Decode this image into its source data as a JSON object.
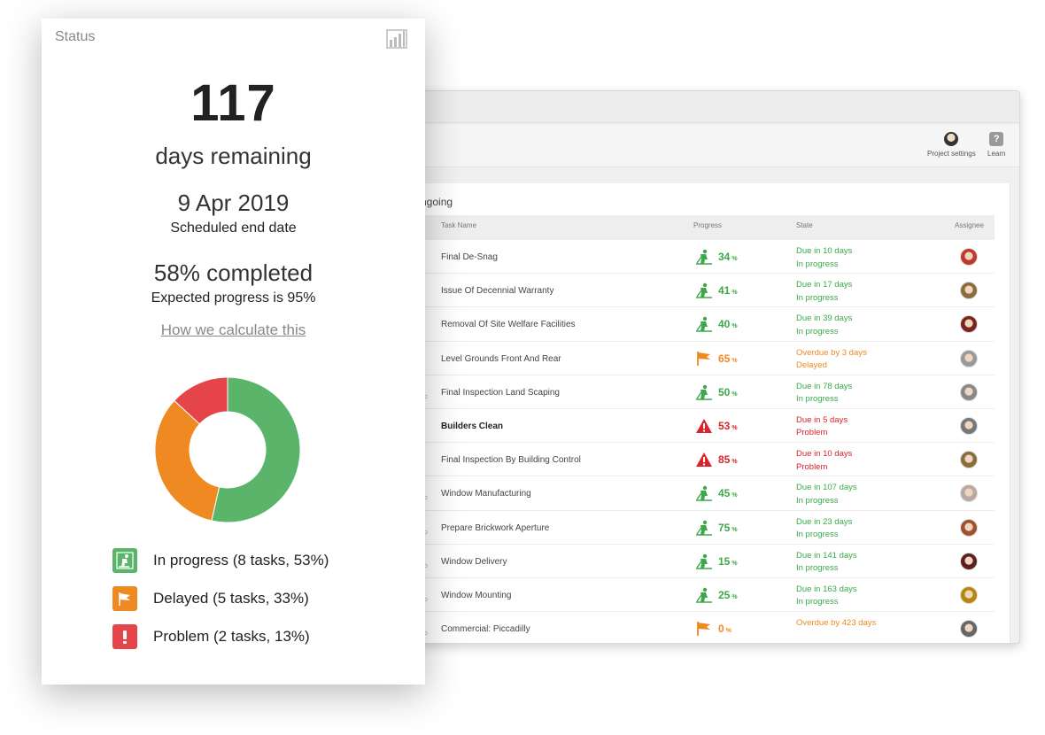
{
  "status_card": {
    "title": "Status",
    "chart_icon": "bar-chart-icon",
    "days_remaining_value": "117",
    "days_remaining_label": "days remaining",
    "end_date": "9 Apr 2019",
    "end_date_label": "Scheduled end date",
    "completed": "58% completed",
    "expected": "Expected progress is 95%",
    "how_link": "How we calculate this",
    "legend": [
      {
        "label": "In progress (8 tasks, 53%)",
        "icon": "worker-digging-icon",
        "color": "#5ab46a"
      },
      {
        "label": "Delayed (5 tasks, 33%)",
        "icon": "flag-icon",
        "color": "#ef8a22"
      },
      {
        "label": "Problem (2 tasks, 13%)",
        "icon": "exclamation-icon",
        "color": "#e5444a"
      }
    ]
  },
  "chart_data": {
    "type": "pie",
    "categories": [
      "In progress",
      "Delayed",
      "Problem"
    ],
    "values": [
      53,
      33,
      13
    ],
    "colors": [
      "#5ab46a",
      "#ef8a22",
      "#e5444a"
    ],
    "donut": true
  },
  "toolbar": {
    "project_settings": "Project settings",
    "learn": "Learn"
  },
  "tasks_panel": {
    "title_fragment": "ngoing",
    "columns": {
      "task": "Task Name",
      "progress": "Progress",
      "state": "State",
      "assignee": "Assignee"
    },
    "rows": [
      {
        "ago": "",
        "name": "Final De-Snag",
        "bold": false,
        "icon": "worker",
        "pct": "34",
        "tone": "green",
        "due": "Due in 10 days",
        "status": "In progress",
        "avatar": "#c0392b"
      },
      {
        "ago": "",
        "name": "Issue Of Decennial Warranty",
        "bold": false,
        "icon": "worker",
        "pct": "41",
        "tone": "green",
        "due": "Due in 17 days",
        "status": "In progress",
        "avatar": "#8a6d3b"
      },
      {
        "ago": "",
        "name": "Removal Of Site Welfare Facilities",
        "bold": false,
        "icon": "worker",
        "pct": "40",
        "tone": "green",
        "due": "Due in 39 days",
        "status": "In progress",
        "avatar": "#7b241c"
      },
      {
        "ago": "",
        "name": "Level Grounds Front And Rear",
        "bold": false,
        "icon": "flag",
        "pct": "65",
        "tone": "orange",
        "due": "Overdue by 3 days",
        "status": "Delayed",
        "avatar": "#999999"
      },
      {
        "ago": "go",
        "name": "Final Inspection Land Scaping",
        "bold": false,
        "icon": "worker",
        "pct": "50",
        "tone": "green",
        "due": "Due in 78 days",
        "status": "In progress",
        "avatar": "#888888"
      },
      {
        "ago": "",
        "name": "Builders Clean",
        "bold": true,
        "icon": "warning",
        "pct": "53",
        "tone": "red",
        "due": "Due in 5 days",
        "status": "Problem",
        "avatar": "#777777"
      },
      {
        "ago": "",
        "name": "Final Inspection By Building Control",
        "bold": false,
        "icon": "warning",
        "pct": "85",
        "tone": "red",
        "due": "Due in 10 days",
        "status": "Problem",
        "avatar": "#8a6d3b"
      },
      {
        "ago": "go",
        "name": "Window Manufacturing",
        "bold": false,
        "icon": "worker",
        "pct": "45",
        "tone": "green",
        "due": "Due in 107 days",
        "status": "In progress",
        "avatar": "#b9a9a0"
      },
      {
        "ago": "go",
        "name": "Prepare Brickwork Aperture",
        "bold": false,
        "icon": "worker",
        "pct": "75",
        "tone": "green",
        "due": "Due in 23 days",
        "status": "In progress",
        "avatar": "#a0522d"
      },
      {
        "ago": "go",
        "name": "Window Delivery",
        "bold": false,
        "icon": "worker",
        "pct": "15",
        "tone": "green",
        "due": "Due in 141 days",
        "status": "In progress",
        "avatar": "#5d1f1f"
      },
      {
        "ago": "go",
        "name": "Window Mounting",
        "bold": false,
        "icon": "worker",
        "pct": "25",
        "tone": "green",
        "due": "Due in 163 days",
        "status": "In progress",
        "avatar": "#b8860b"
      },
      {
        "ago": "go",
        "name": "Commercial: Piccadilly",
        "bold": false,
        "icon": "flag",
        "pct": "0",
        "tone": "orange",
        "due": "Overdue by 423 days",
        "status": "",
        "avatar": "#666666"
      }
    ]
  }
}
